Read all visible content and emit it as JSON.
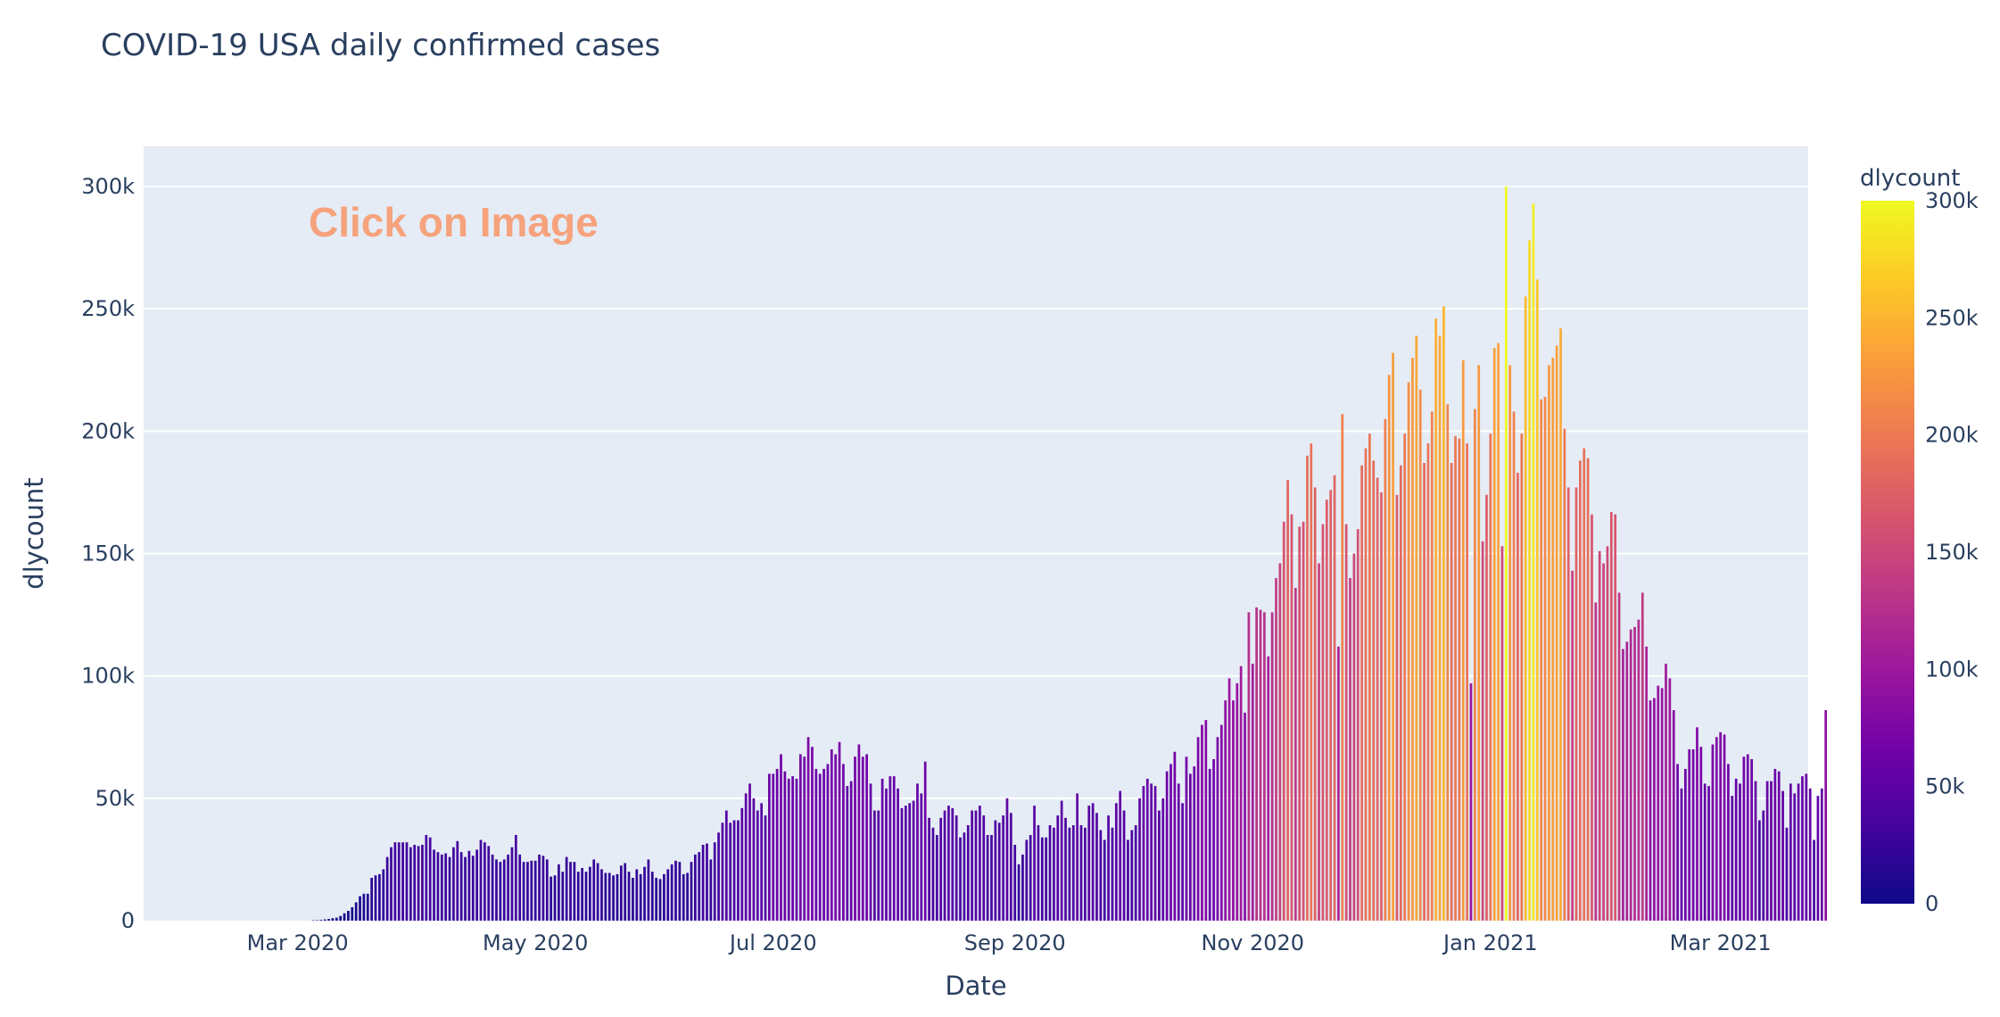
{
  "chart_data": {
    "type": "bar",
    "title": "COVID-19 USA daily confirmed cases",
    "xlabel": "Date",
    "ylabel": "dlycount",
    "annotation": "Click on Image",
    "colorbar_title": "dlycount",
    "colorscale": "plasma",
    "colorscale_colors": [
      "#0d0887",
      "#46039f",
      "#7201a8",
      "#9c179e",
      "#bd3786",
      "#d8576b",
      "#ed7953",
      "#fb9f3a",
      "#fdca26",
      "#f0f921"
    ],
    "color_range": [
      0,
      300000
    ],
    "ylim": [
      0,
      300000
    ],
    "grid": true,
    "plot_bgcolor": "#e5ecf6",
    "x_start": "2020-01-22",
    "x_end": "2021-03-23",
    "y_ticks": [
      {
        "value": 0,
        "label": "0"
      },
      {
        "value": 50000,
        "label": "50k"
      },
      {
        "value": 100000,
        "label": "100k"
      },
      {
        "value": 150000,
        "label": "150k"
      },
      {
        "value": 200000,
        "label": "200k"
      },
      {
        "value": 250000,
        "label": "250k"
      },
      {
        "value": 300000,
        "label": "300k"
      }
    ],
    "x_ticks": [
      {
        "value": "2020-03-01",
        "label": "Mar 2020"
      },
      {
        "value": "2020-05-01",
        "label": "May 2020"
      },
      {
        "value": "2020-07-01",
        "label": "Jul 2020"
      },
      {
        "value": "2020-09-01",
        "label": "Sep 2020"
      },
      {
        "value": "2020-11-01",
        "label": "Nov 2020"
      },
      {
        "value": "2021-01-01",
        "label": "Jan 2021"
      },
      {
        "value": "2021-03-01",
        "label": "Mar 2021"
      }
    ],
    "colorbar_ticks": [
      {
        "value": 0,
        "label": "0"
      },
      {
        "value": 50000,
        "label": "50k"
      },
      {
        "value": 100000,
        "label": "100k"
      },
      {
        "value": 150000,
        "label": "150k"
      },
      {
        "value": 200000,
        "label": "200k"
      },
      {
        "value": 250000,
        "label": "250k"
      },
      {
        "value": 300000,
        "label": "300k"
      }
    ],
    "series": [
      {
        "name": "dlycount",
        "x_start": "2020-01-22",
        "values": [
          0,
          0,
          0,
          0,
          0,
          0,
          0,
          0,
          0,
          0,
          0,
          0,
          0,
          0,
          0,
          0,
          0,
          0,
          0,
          0,
          0,
          0,
          0,
          0,
          0,
          0,
          0,
          0,
          0,
          0,
          0,
          0,
          0,
          0,
          0,
          0,
          0,
          0,
          0,
          0,
          0,
          0,
          0,
          100,
          200,
          300,
          500,
          700,
          1000,
          1200,
          1900,
          3000,
          4000,
          5500,
          7500,
          10000,
          11000,
          11000,
          17500,
          18500,
          19000,
          21000,
          26000,
          30000,
          32000,
          32000,
          32000,
          32000,
          30000,
          31000,
          30500,
          31000,
          35000,
          34000,
          29000,
          28000,
          27000,
          27500,
          26000,
          30000,
          32500,
          28000,
          26000,
          28500,
          26500,
          29000,
          33000,
          32000,
          30500,
          27000,
          25000,
          24000,
          25000,
          27000,
          30000,
          35000,
          27000,
          24000,
          24000,
          24500,
          24500,
          27000,
          26500,
          25000,
          18000,
          18500,
          23000,
          20000,
          26000,
          24000,
          24000,
          20000,
          21500,
          20000,
          22000,
          25000,
          23500,
          21000,
          19500,
          19500,
          18500,
          19000,
          22500,
          23500,
          20000,
          17500,
          21000,
          19000,
          22000,
          25000,
          20000,
          17500,
          17000,
          19000,
          21000,
          23000,
          24500,
          24000,
          19000,
          19500,
          24000,
          27000,
          28000,
          31000,
          31500,
          25000,
          32000,
          36000,
          40000,
          45000,
          40000,
          41000,
          41000,
          46000,
          52000,
          56000,
          50000,
          45000,
          48000,
          43000,
          60000,
          60000,
          62000,
          68000,
          61000,
          58000,
          59000,
          58000,
          68000,
          67000,
          75000,
          71000,
          62000,
          60000,
          62000,
          64000,
          70000,
          68000,
          73000,
          64000,
          55000,
          57000,
          67000,
          72000,
          67000,
          68000,
          56000,
          45000,
          45000,
          58000,
          54000,
          59000,
          59000,
          54000,
          46000,
          47000,
          48000,
          49000,
          56000,
          52000,
          65000,
          42000,
          38000,
          35000,
          42000,
          45000,
          47000,
          46000,
          43000,
          34000,
          36000,
          39000,
          45000,
          45000,
          47000,
          43000,
          35000,
          35000,
          41000,
          40000,
          43000,
          50000,
          44000,
          31000,
          23000,
          27000,
          33000,
          35000,
          47000,
          39000,
          34000,
          34000,
          39000,
          38000,
          43000,
          49000,
          42000,
          38000,
          39000,
          52000,
          39000,
          38000,
          47000,
          48000,
          44000,
          37000,
          33000,
          43000,
          38000,
          48000,
          53000,
          45000,
          33000,
          37000,
          39000,
          50000,
          55000,
          58000,
          56000,
          55000,
          45000,
          50000,
          61000,
          64000,
          69000,
          56000,
          48000,
          67000,
          60000,
          63000,
          75000,
          80000,
          82000,
          62000,
          66000,
          75000,
          80000,
          90000,
          99000,
          90000,
          97000,
          104000,
          85000,
          126000,
          105000,
          128000,
          127000,
          126000,
          108000,
          126000,
          140000,
          146000,
          163000,
          180000,
          166000,
          136000,
          161000,
          163000,
          190000,
          195000,
          177000,
          146000,
          162000,
          172000,
          176000,
          182000,
          112000,
          207000,
          162000,
          140000,
          150000,
          160000,
          186000,
          193000,
          199000,
          188000,
          181000,
          175000,
          205000,
          223000,
          232000,
          174000,
          186000,
          199000,
          220000,
          230000,
          239000,
          217000,
          187000,
          195000,
          208000,
          246000,
          239000,
          251000,
          211000,
          187000,
          198000,
          197000,
          229000,
          195000,
          97000,
          209000,
          227000,
          155000,
          174000,
          199000,
          234000,
          236000,
          153000,
          300000,
          227000,
          208000,
          183000,
          199000,
          255000,
          278000,
          293000,
          262000,
          213000,
          214000,
          227000,
          230000,
          235000,
          242000,
          201000,
          177000,
          143000,
          177000,
          188000,
          193000,
          189000,
          166000,
          130000,
          151000,
          146000,
          153000,
          167000,
          166000,
          134000,
          111000,
          114000,
          119000,
          120000,
          123000,
          134000,
          112000,
          90000,
          91000,
          96000,
          95000,
          105000,
          99000,
          86000,
          64000,
          54000,
          62000,
          70000,
          70000,
          79000,
          71000,
          56000,
          55000,
          72000,
          75000,
          77000,
          76000,
          64000,
          51000,
          58000,
          56000,
          67000,
          68000,
          66000,
          57000,
          41000,
          45000,
          57000,
          57000,
          62000,
          61000,
          53000,
          38000,
          56000,
          52000,
          56000,
          59000,
          60000,
          54000,
          33000,
          51000,
          54000,
          86000
        ]
      }
    ]
  }
}
